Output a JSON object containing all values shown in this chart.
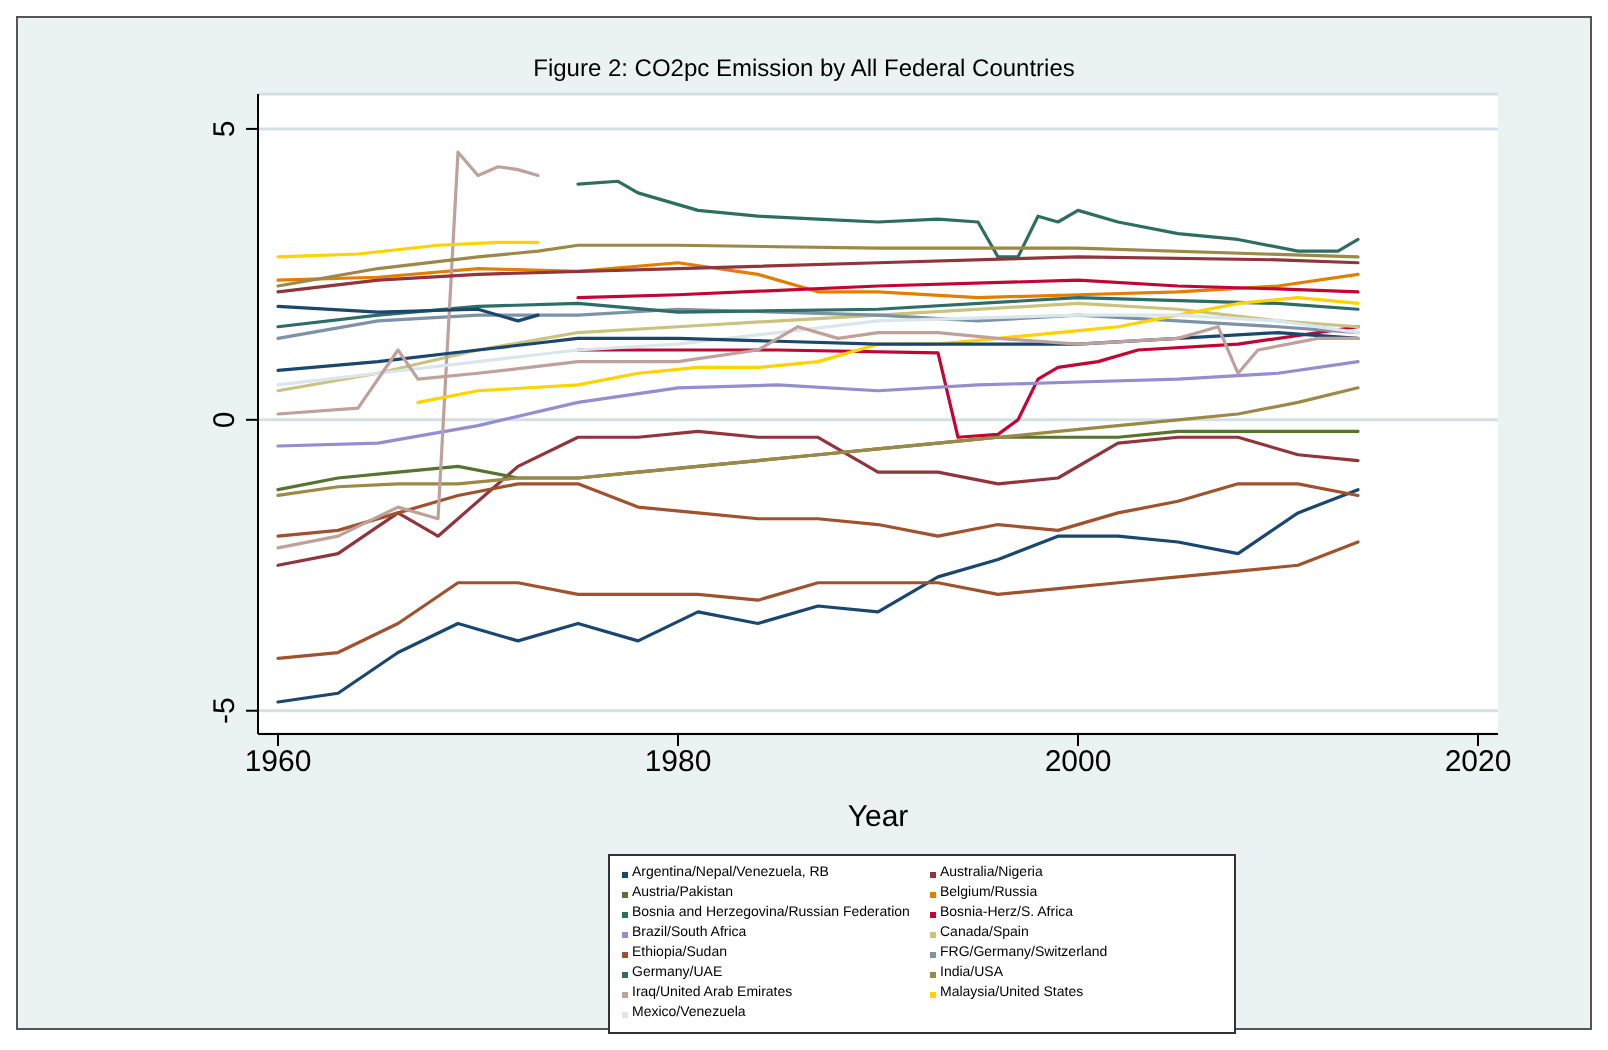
{
  "chart_data": {
    "type": "line",
    "title": "Figure 2: CO2pc Emission by All Federal Countries",
    "xlabel": "Year",
    "xlim": [
      1959,
      2021
    ],
    "xticks": [
      1960,
      1980,
      2000,
      2020
    ],
    "ylim": [
      -5.4,
      5.6
    ],
    "yticks": [
      -5,
      0,
      5
    ],
    "grid": "y",
    "legend": "bottom",
    "series": [
      {
        "name": "Argentina/Nepal/Venezuela, RB",
        "color": "#1a476f",
        "x": [
          1960,
          1963,
          1966,
          1969,
          1972,
          1975,
          1978,
          1981,
          1984,
          1987,
          1990,
          1993,
          1996,
          1999,
          2002,
          2005,
          2008,
          2011,
          2014
        ],
        "values": [
          -4.85,
          -4.7,
          -4.0,
          -3.5,
          -3.8,
          -3.5,
          -3.8,
          -3.3,
          -3.5,
          -3.2,
          -3.3,
          -2.7,
          -2.4,
          -2.0,
          -2.0,
          -2.1,
          -2.3,
          -1.6,
          -1.2
        ]
      },
      {
        "name": "Australia/Nigeria",
        "color": "#90353b",
        "x": [
          1960,
          1963,
          1966,
          1968,
          1972,
          1975,
          1978,
          1981,
          1984,
          1987,
          1990,
          1993,
          1996,
          1999,
          2002,
          2005,
          2008,
          2011,
          2014
        ],
        "values": [
          -2.5,
          -2.3,
          -1.6,
          -2.0,
          -0.8,
          -0.3,
          -0.3,
          -0.2,
          -0.3,
          -0.3,
          -0.9,
          -0.9,
          -1.1,
          -1.0,
          -0.4,
          -0.3,
          -0.3,
          -0.6,
          -0.7
        ]
      },
      {
        "name": "Austria/Pakistan",
        "color": "#55752f",
        "x": [
          1960,
          1963,
          1966,
          1969,
          1972,
          1975,
          1978,
          1981,
          1984,
          1987,
          1990,
          1993,
          1996,
          1999,
          2002,
          2005,
          2008,
          2011,
          2014
        ],
        "values": [
          -1.2,
          -1.0,
          -0.9,
          -0.8,
          -1.0,
          -1.0,
          -0.9,
          -0.8,
          -0.7,
          -0.6,
          -0.5,
          -0.4,
          -0.3,
          -0.3,
          -0.3,
          -0.2,
          -0.2,
          -0.2,
          -0.2
        ]
      },
      {
        "name": "Belgium/Russia",
        "color": "#e37e00",
        "x": [
          1960,
          1965,
          1970,
          1975,
          1980,
          1984,
          1987,
          1990,
          1995,
          2000,
          2005,
          2010,
          2014
        ],
        "values": [
          2.4,
          2.45,
          2.6,
          2.55,
          2.7,
          2.5,
          2.2,
          2.2,
          2.1,
          2.15,
          2.2,
          2.3,
          2.5
        ]
      },
      {
        "name": "Bosnia and Herzegovina/Russian Federation",
        "color": "#2e6e62",
        "x": [
          1975,
          1977,
          1978,
          1981,
          1984,
          1987,
          1990,
          1993,
          1995,
          1996,
          1997,
          1998,
          1999,
          2000,
          2002,
          2005,
          2008,
          2011,
          2013,
          2014
        ],
        "values": [
          4.05,
          4.1,
          3.9,
          3.6,
          3.5,
          3.45,
          3.4,
          3.45,
          3.4,
          2.8,
          2.8,
          3.5,
          3.4,
          3.6,
          3.4,
          3.2,
          3.1,
          2.9,
          2.9,
          3.1
        ]
      },
      {
        "name": "Bosnia-Herz/S. Africa",
        "color": "#c10534",
        "x": [
          1975,
          1985,
          1993,
          1994,
          1996,
          1997,
          1998,
          1999,
          2001,
          2003,
          2008,
          2014
        ],
        "values": [
          1.2,
          1.2,
          1.15,
          -0.3,
          -0.25,
          0.0,
          0.7,
          0.9,
          1.0,
          1.2,
          1.3,
          1.6
        ]
      },
      {
        "name": "Brazil/South Africa",
        "color": "#938dd2",
        "x": [
          1960,
          1965,
          1970,
          1975,
          1980,
          1985,
          1990,
          1995,
          2000,
          2005,
          2010,
          2014
        ],
        "values": [
          -0.45,
          -0.4,
          -0.1,
          0.3,
          0.55,
          0.6,
          0.5,
          0.6,
          0.65,
          0.7,
          0.8,
          1.0
        ]
      },
      {
        "name": "Canada/Spain",
        "color": "#cac27e",
        "x": [
          1960,
          1965,
          1970,
          1975,
          1980,
          1990,
          2000,
          2005,
          2010,
          2014
        ],
        "values": [
          0.5,
          0.8,
          1.2,
          1.5,
          1.6,
          1.8,
          2.0,
          1.9,
          1.7,
          1.6
        ]
      },
      {
        "name": "Ethiopia/Sudan",
        "color": "#a0522d",
        "x": [
          1960,
          1963,
          1966,
          1969,
          1972,
          1975,
          1978,
          1981,
          1984,
          1987,
          1990,
          1993,
          1996,
          1999,
          2002,
          2005,
          2008,
          2011,
          2014
        ],
        "values": [
          -2.0,
          -1.9,
          -1.6,
          -1.3,
          -1.1,
          -1.1,
          -1.5,
          -1.6,
          -1.7,
          -1.7,
          -1.8,
          -2.0,
          -1.8,
          -1.9,
          -1.6,
          -1.4,
          -1.1,
          -1.1,
          -1.3
        ]
      },
      {
        "name": "FRG/Germany/Switzerland",
        "color": "#7b92a8",
        "x": [
          1960,
          1965,
          1970,
          1975,
          1980,
          1990,
          1995,
          2000,
          2005,
          2010,
          2014
        ],
        "values": [
          1.4,
          1.7,
          1.8,
          1.8,
          1.9,
          1.8,
          1.7,
          1.8,
          1.7,
          1.6,
          1.5
        ]
      },
      {
        "name": "Germany/UAE",
        "color": "#2d6d66",
        "x": [
          1960,
          1965,
          1970,
          1975,
          1980,
          1990,
          2000,
          2010,
          2014
        ],
        "values": [
          1.6,
          1.8,
          1.95,
          2.0,
          1.85,
          1.9,
          2.1,
          2.0,
          1.9
        ]
      },
      {
        "name": "India/USA",
        "color": "#9c8847",
        "x": [
          1960,
          1963,
          1966,
          1969,
          1972,
          1975,
          1978,
          1981,
          1984,
          1987,
          1990,
          1993,
          1996,
          1999,
          2002,
          2005,
          2008,
          2011,
          2014
        ],
        "values": [
          -1.3,
          -1.15,
          -1.1,
          -1.1,
          -1.0,
          -1.0,
          -0.9,
          -0.8,
          -0.7,
          -0.6,
          -0.5,
          -0.4,
          -0.3,
          -0.2,
          -0.1,
          0.0,
          0.1,
          0.3,
          0.55
        ]
      },
      {
        "name": "Iraq/United Arab Emirates",
        "color": "#bfa19c",
        "x": [
          1960,
          1963,
          1966,
          1968,
          1969,
          1970,
          1971,
          1972,
          1973
        ],
        "values": [
          -2.2,
          -2.0,
          -1.5,
          -1.7,
          4.6,
          4.2,
          4.35,
          4.3,
          4.2
        ]
      },
      {
        "name": "Malaysia/United States",
        "color": "#ffd200",
        "x": [
          1967,
          1970,
          1975,
          1978,
          1981,
          1984,
          1987,
          1990,
          1993,
          1996,
          1999,
          2002,
          2005,
          2008,
          2011,
          2014
        ],
        "values": [
          0.3,
          0.5,
          0.6,
          0.8,
          0.9,
          0.9,
          1.0,
          1.3,
          1.3,
          1.4,
          1.5,
          1.6,
          1.8,
          2.0,
          2.1,
          2.0
        ]
      },
      {
        "name": "Mexico/Venezuela",
        "color": "#d9e6eb",
        "x": [
          1960,
          1965,
          1970,
          1975,
          1980,
          1985,
          1990,
          2000,
          2005,
          2010,
          2014
        ],
        "values": [
          0.6,
          0.8,
          1.0,
          1.2,
          1.3,
          1.5,
          1.7,
          1.8,
          1.8,
          1.7,
          1.5
        ]
      },
      {
        "color": "#a0522d",
        "x": [
          1960,
          1963,
          1966,
          1969,
          1972,
          1975,
          1978,
          1981,
          1984,
          1987,
          1990,
          1993,
          1996,
          1999,
          2002,
          2005,
          2008,
          2011,
          2014
        ],
        "values": [
          -4.1,
          -4.0,
          -3.5,
          -2.8,
          -2.8,
          -3.0,
          -3.0,
          -3.0,
          -3.1,
          -2.8,
          -2.8,
          -2.8,
          -3.0,
          -2.9,
          -2.8,
          -2.7,
          -2.6,
          -2.5,
          -2.1
        ]
      },
      {
        "color": "#ffd200",
        "x": [
          1960,
          1964,
          1968,
          1971,
          1973
        ],
        "values": [
          2.8,
          2.85,
          3.0,
          3.05,
          3.05
        ]
      },
      {
        "color": "#9c8847",
        "x": [
          1960,
          1965,
          1970,
          1973,
          1975,
          1980,
          1990,
          2000,
          2014
        ],
        "values": [
          2.3,
          2.6,
          2.8,
          2.9,
          3.0,
          3.0,
          2.95,
          2.95,
          2.8
        ]
      },
      {
        "color": "#90353b",
        "x": [
          1960,
          1965,
          1970,
          1980,
          1990,
          2000,
          2010,
          2014
        ],
        "values": [
          2.2,
          2.4,
          2.5,
          2.6,
          2.7,
          2.8,
          2.75,
          2.7
        ]
      },
      {
        "color": "#c10534",
        "x": [
          1975,
          1980,
          1990,
          2000,
          2005,
          2010,
          2014
        ],
        "values": [
          2.1,
          2.15,
          2.3,
          2.4,
          2.3,
          2.25,
          2.2
        ]
      },
      {
        "color": "#1a476f",
        "x": [
          1960,
          1965,
          1970,
          1972,
          1973
        ],
        "values": [
          1.95,
          1.85,
          1.9,
          1.7,
          1.8
        ]
      },
      {
        "color": "#1a476f",
        "x": [
          1960,
          1965,
          1970,
          1975,
          1980,
          1985,
          1990,
          1995,
          2000,
          2005,
          2010,
          2014
        ],
        "values": [
          0.85,
          1.0,
          1.2,
          1.4,
          1.4,
          1.35,
          1.3,
          1.3,
          1.3,
          1.4,
          1.5,
          1.4
        ]
      },
      {
        "color": "#bfa19c",
        "x": [
          1960,
          1964,
          1966,
          1967,
          1970,
          1975,
          1980,
          1984,
          1986,
          1988,
          1990,
          1993,
          1996,
          2000,
          2005,
          2007,
          2008,
          2009,
          2012,
          2014
        ],
        "values": [
          0.1,
          0.2,
          1.2,
          0.7,
          0.8,
          1.0,
          1.0,
          1.2,
          1.6,
          1.4,
          1.5,
          1.5,
          1.4,
          1.3,
          1.4,
          1.6,
          0.8,
          1.2,
          1.4,
          1.4
        ]
      }
    ]
  }
}
